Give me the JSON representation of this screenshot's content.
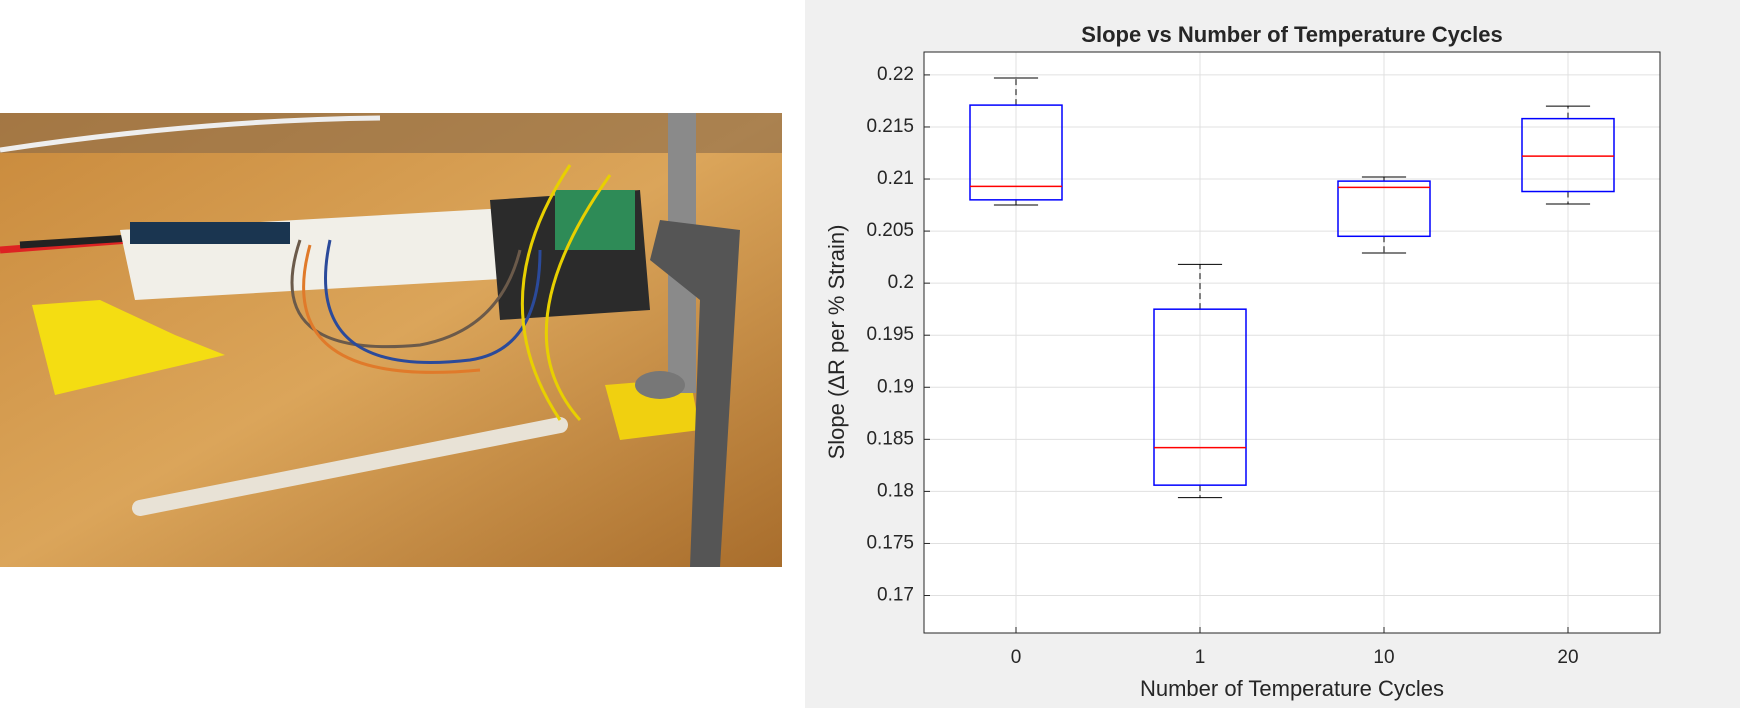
{
  "chart_data": {
    "type": "box",
    "title": "Slope vs Number of Temperature Cycles",
    "xlabel": "Number of Temperature Cycles",
    "ylabel": "Slope (ΔR per % Strain)",
    "categories": [
      "0",
      "1",
      "10",
      "20"
    ],
    "whisker_low": [
      0.2075,
      0.1794,
      0.2029,
      0.2076
    ],
    "q1": [
      0.208,
      0.1806,
      0.2045,
      0.2088
    ],
    "median": [
      0.2093,
      0.1842,
      0.2092,
      0.2122
    ],
    "q3": [
      0.2171,
      0.1975,
      0.2098,
      0.2158
    ],
    "whisker_high": [
      0.2197,
      0.2018,
      0.2102,
      0.217
    ],
    "box_color": "#0000ff",
    "median_color": "#ff0000",
    "whisker_color": "#000000",
    "ylim": [
      0.1664,
      0.2222
    ],
    "yticks": [
      0.17,
      0.175,
      0.18,
      0.185,
      0.19,
      0.195,
      0.2,
      0.205,
      0.21,
      0.215,
      0.22
    ],
    "grid": true
  }
}
